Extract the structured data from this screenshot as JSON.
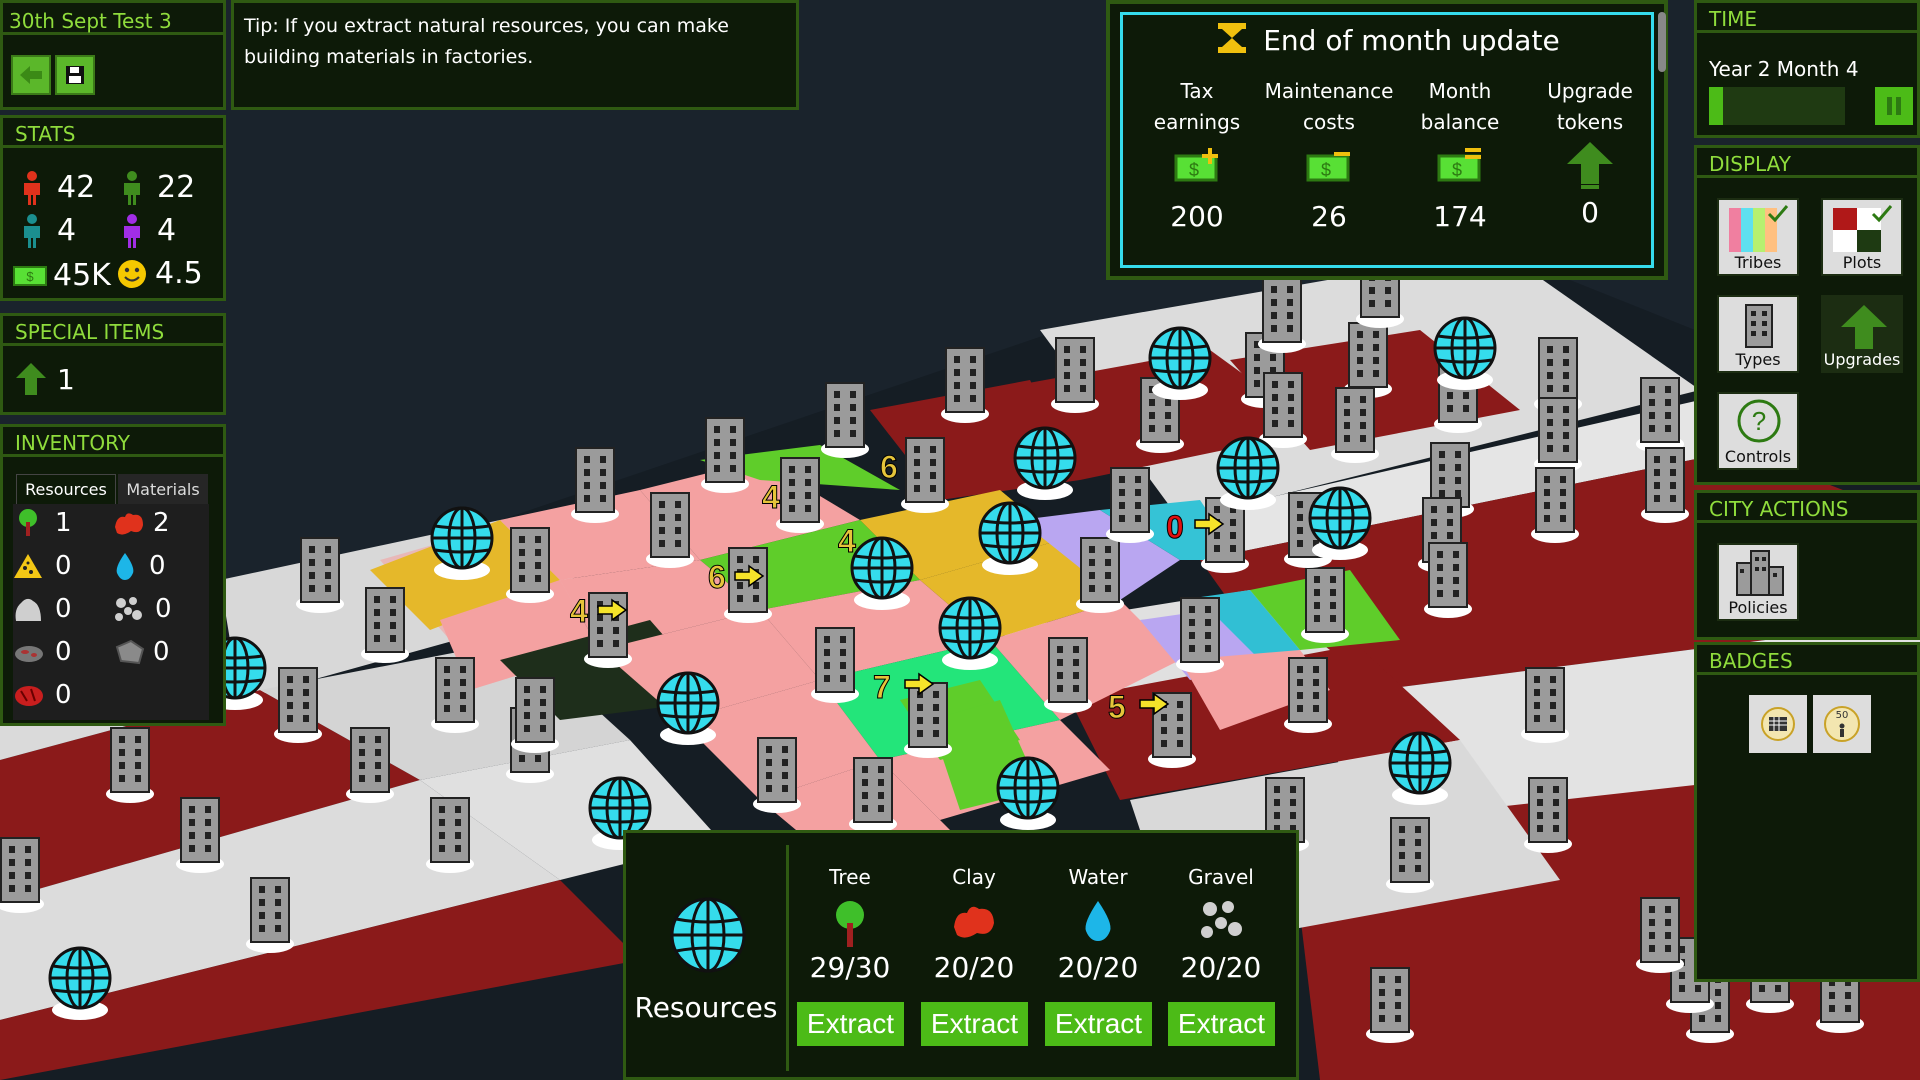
{
  "game": {
    "name": "30th Sept Test 3"
  },
  "tip": "Tip: If you extract natural resources, you can make building materials in factories.",
  "stats": {
    "title": "STATS",
    "red_pop": "42",
    "green_pop": "22",
    "teal_pop": "4",
    "purple_pop": "4",
    "money": "45K",
    "happiness": "4.5"
  },
  "special": {
    "title": "SPECIAL ITEMS",
    "upgrade_count": "1"
  },
  "inventory": {
    "title": "INVENTORY",
    "tabs": [
      "Resources",
      "Materials"
    ],
    "rows": [
      {
        "left": "1",
        "right": "2"
      },
      {
        "left": "0",
        "right": "0"
      },
      {
        "left": "0",
        "right": "0"
      },
      {
        "left": "0",
        "right": "0"
      },
      {
        "left": "0"
      }
    ]
  },
  "month_update": {
    "title": "End of month update",
    "columns": [
      {
        "label_1": "Tax",
        "label_2": "earnings",
        "value": "200",
        "icon": "money-plus-icon"
      },
      {
        "label_1": "Maintenance",
        "label_2": "costs",
        "value": "26",
        "icon": "money-minus-icon"
      },
      {
        "label_1": "Month",
        "label_2": "balance",
        "value": "174",
        "icon": "money-equals-icon"
      },
      {
        "label_1": "Upgrade",
        "label_2": "tokens",
        "value": "0",
        "icon": "upgrade-arrow-icon"
      }
    ]
  },
  "time": {
    "title": "TIME",
    "label": "Year 2 Month 4",
    "progress": 0.1
  },
  "display": {
    "title": "DISPLAY",
    "buttons": [
      "Tribes",
      "Plots",
      "Types",
      "Upgrades",
      "Controls"
    ]
  },
  "city_actions": {
    "title": "CITY ACTIONS",
    "buttons": [
      "Policies"
    ]
  },
  "badges": {
    "title": "BADGES",
    "badge_2": "50"
  },
  "resources_panel": {
    "title": "Resources",
    "items": [
      {
        "name": "Tree",
        "value": "29/30",
        "action": "Extract"
      },
      {
        "name": "Clay",
        "value": "20/20",
        "action": "Extract"
      },
      {
        "name": "Water",
        "value": "20/20",
        "action": "Extract"
      },
      {
        "name": "Gravel",
        "value": "20/20",
        "action": "Extract"
      }
    ]
  },
  "map_labels": [
    "6",
    "4",
    "4",
    "6",
    "4",
    "0",
    "7",
    "5"
  ],
  "colors": {
    "panel_bg": "#0d1a08",
    "panel_border": "#2f5a12",
    "accent": "#8fdc3c",
    "button": "#4cbb17",
    "highlight": "#35dcec"
  }
}
